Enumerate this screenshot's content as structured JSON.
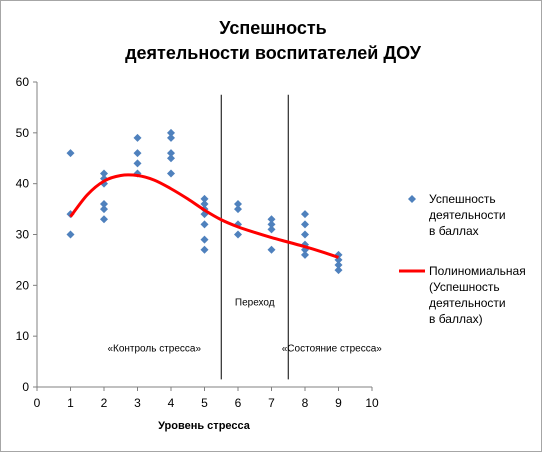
{
  "chart_data": {
    "type": "scatter",
    "title_lines": [
      "Успешность",
      "деятельности  воспитателей  ДОУ"
    ],
    "xlabel": "Уровень стресса",
    "ylabel": "",
    "xlim": [
      0,
      10
    ],
    "ylim": [
      0,
      60
    ],
    "x_ticks": [
      "0",
      "1",
      "2",
      "3",
      "4",
      "5",
      "6",
      "7",
      "8",
      "9",
      "10"
    ],
    "y_ticks": [
      "0",
      "10",
      "20",
      "30",
      "40",
      "50",
      "60"
    ],
    "grid": false,
    "legend_position": "right",
    "series": [
      {
        "name_lines": [
          "Успешность",
          "деятельности",
          "в баллах"
        ],
        "marker": "diamond",
        "color": "#4f81bd",
        "points": [
          [
            1,
            46
          ],
          [
            1,
            34
          ],
          [
            1,
            30
          ],
          [
            2,
            42
          ],
          [
            2,
            41
          ],
          [
            2,
            40
          ],
          [
            2,
            36
          ],
          [
            2,
            35
          ],
          [
            2,
            33
          ],
          [
            3,
            49
          ],
          [
            3,
            46
          ],
          [
            3,
            44
          ],
          [
            3,
            42
          ],
          [
            4,
            50
          ],
          [
            4,
            49
          ],
          [
            4,
            46
          ],
          [
            4,
            45
          ],
          [
            4,
            42
          ],
          [
            5,
            37
          ],
          [
            5,
            36
          ],
          [
            5,
            35
          ],
          [
            5,
            34
          ],
          [
            5,
            32
          ],
          [
            5,
            29
          ],
          [
            5,
            27
          ],
          [
            6,
            36
          ],
          [
            6,
            35
          ],
          [
            6,
            32
          ],
          [
            6,
            30
          ],
          [
            7,
            33
          ],
          [
            7,
            32
          ],
          [
            7,
            31
          ],
          [
            7,
            27
          ],
          [
            8,
            34
          ],
          [
            8,
            32
          ],
          [
            8,
            30
          ],
          [
            8,
            28
          ],
          [
            8,
            27
          ],
          [
            8,
            26
          ],
          [
            9,
            26
          ],
          [
            9,
            25
          ],
          [
            9,
            24
          ],
          [
            9,
            23
          ]
        ]
      },
      {
        "name_lines": [
          "Полиномиальная",
          "(Успешность",
          "деятельности",
          "  в баллах)"
        ],
        "type": "trendline",
        "color": "#ff0000",
        "x": [
          1,
          1.5,
          2,
          2.5,
          3,
          3.5,
          4,
          4.5,
          5,
          5.5,
          6,
          6.5,
          7,
          7.5,
          8,
          8.5,
          9
        ],
        "y": [
          33.5,
          37.8,
          40.5,
          41.6,
          41.6,
          40.7,
          39.0,
          37.0,
          34.8,
          32.9,
          31.5,
          30.4,
          29.4,
          28.5,
          27.6,
          26.6,
          25.5
        ]
      }
    ],
    "vertical_lines": [
      5.5,
      7.5
    ],
    "annotations": [
      {
        "text": "«Контроль стресса»",
        "x": 3.5,
        "y": 7
      },
      {
        "text": "Переход",
        "x": 6.5,
        "y": 16
      },
      {
        "text": "«Состояние стресса»",
        "x": 8.8,
        "y": 7
      }
    ]
  }
}
